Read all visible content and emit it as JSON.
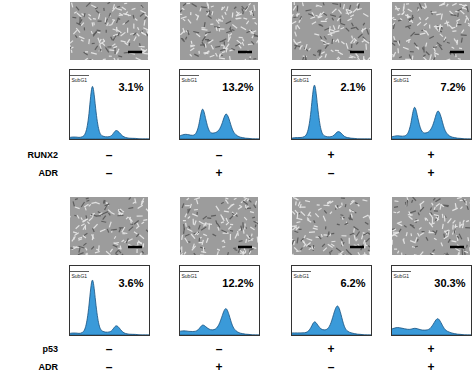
{
  "chart_data": [
    {
      "type": "area",
      "x": [
        0,
        1,
        2,
        3,
        4,
        5,
        6,
        7,
        8,
        9,
        10,
        11,
        12,
        13,
        14,
        15,
        16,
        17,
        18,
        19,
        20,
        21,
        22,
        23,
        24
      ],
      "values": [
        2,
        3,
        3,
        2,
        3,
        6,
        30,
        95,
        40,
        8,
        4,
        3,
        3,
        5,
        14,
        10,
        4,
        2,
        1,
        1,
        1,
        0,
        0,
        0,
        0
      ],
      "annotation": "3.1%",
      "color": "#3a9ad9",
      "xlim": [
        0,
        24
      ],
      "ylim": [
        0,
        100
      ],
      "tick_labels": false
    },
    {
      "type": "area",
      "x": [
        0,
        1,
        2,
        3,
        4,
        5,
        6,
        7,
        8,
        9,
        10,
        11,
        12,
        13,
        14,
        15,
        16,
        17,
        18,
        19,
        20,
        21,
        22,
        23,
        24
      ],
      "values": [
        4,
        6,
        7,
        6,
        5,
        6,
        18,
        52,
        28,
        10,
        8,
        9,
        12,
        22,
        40,
        30,
        12,
        6,
        3,
        2,
        1,
        1,
        0,
        0,
        0
      ],
      "annotation": "13.2%",
      "color": "#3a9ad9",
      "xlim": [
        0,
        24
      ],
      "ylim": [
        0,
        100
      ],
      "tick_labels": false
    },
    {
      "type": "area",
      "x": [
        0,
        1,
        2,
        3,
        4,
        5,
        6,
        7,
        8,
        9,
        10,
        11,
        12,
        13,
        14,
        15,
        16,
        17,
        18,
        19,
        20,
        21,
        22,
        23,
        24
      ],
      "values": [
        1,
        2,
        2,
        2,
        3,
        7,
        35,
        96,
        42,
        9,
        4,
        3,
        3,
        5,
        12,
        9,
        3,
        2,
        1,
        1,
        0,
        0,
        0,
        0,
        0
      ],
      "annotation": "2.1%",
      "color": "#3a9ad9",
      "xlim": [
        0,
        24
      ],
      "ylim": [
        0,
        100
      ],
      "tick_labels": false
    },
    {
      "type": "area",
      "x": [
        0,
        1,
        2,
        3,
        4,
        5,
        6,
        7,
        8,
        9,
        10,
        11,
        12,
        13,
        14,
        15,
        16,
        17,
        18,
        19,
        20,
        21,
        22,
        23,
        24
      ],
      "values": [
        3,
        4,
        5,
        4,
        4,
        6,
        20,
        55,
        30,
        11,
        8,
        9,
        13,
        25,
        45,
        33,
        13,
        6,
        3,
        2,
        1,
        1,
        0,
        0,
        0
      ],
      "annotation": "7.2%",
      "color": "#3a9ad9",
      "xlim": [
        0,
        24
      ],
      "ylim": [
        0,
        100
      ],
      "tick_labels": false
    },
    {
      "type": "area",
      "x": [
        0,
        1,
        2,
        3,
        4,
        5,
        6,
        7,
        8,
        9,
        10,
        11,
        12,
        13,
        14,
        15,
        16,
        17,
        18,
        19,
        20,
        21,
        22,
        23,
        24
      ],
      "values": [
        2,
        3,
        3,
        2,
        3,
        8,
        38,
        97,
        44,
        10,
        5,
        4,
        4,
        6,
        15,
        11,
        4,
        2,
        1,
        1,
        1,
        0,
        0,
        0,
        0
      ],
      "annotation": "3.6%",
      "color": "#3a9ad9",
      "xlim": [
        0,
        24
      ],
      "ylim": [
        0,
        100
      ],
      "tick_labels": false
    },
    {
      "type": "area",
      "x": [
        0,
        1,
        2,
        3,
        4,
        5,
        6,
        7,
        8,
        9,
        10,
        11,
        12,
        13,
        14,
        15,
        16,
        17,
        18,
        19,
        20,
        21,
        22,
        23,
        24
      ],
      "values": [
        5,
        6,
        6,
        5,
        5,
        5,
        8,
        16,
        12,
        8,
        7,
        8,
        14,
        28,
        42,
        30,
        12,
        6,
        3,
        2,
        1,
        1,
        0,
        0,
        0
      ],
      "annotation": "12.2%",
      "color": "#3a9ad9",
      "xlim": [
        0,
        24
      ],
      "ylim": [
        0,
        100
      ],
      "tick_labels": false
    },
    {
      "type": "area",
      "x": [
        0,
        1,
        2,
        3,
        4,
        5,
        6,
        7,
        8,
        9,
        10,
        11,
        12,
        13,
        14,
        15,
        16,
        17,
        18,
        19,
        20,
        21,
        22,
        23,
        24
      ],
      "values": [
        3,
        3,
        3,
        3,
        3,
        4,
        10,
        22,
        14,
        8,
        7,
        8,
        16,
        34,
        46,
        30,
        10,
        5,
        3,
        2,
        1,
        1,
        0,
        0,
        0
      ],
      "annotation": "6.2%",
      "color": "#3a9ad9",
      "xlim": [
        0,
        24
      ],
      "ylim": [
        0,
        100
      ],
      "tick_labels": false
    },
    {
      "type": "area",
      "x": [
        0,
        1,
        2,
        3,
        4,
        5,
        6,
        7,
        8,
        9,
        10,
        11,
        12,
        13,
        14,
        15,
        16,
        17,
        18,
        19,
        20,
        21,
        22,
        23,
        24
      ],
      "values": [
        8,
        10,
        11,
        10,
        9,
        8,
        8,
        10,
        9,
        7,
        7,
        7,
        10,
        18,
        26,
        18,
        8,
        5,
        3,
        2,
        1,
        1,
        0,
        0,
        0
      ],
      "annotation": "30.3%",
      "color": "#3a9ad9",
      "xlim": [
        0,
        24
      ],
      "ylim": [
        0,
        100
      ],
      "tick_labels": false
    }
  ],
  "figure": {
    "gate_label": "SubG1",
    "gate": [
      0,
      6
    ],
    "groups": [
      {
        "factor": "RUNX2",
        "factor_signs": [
          "–",
          "–",
          "+",
          "+"
        ],
        "treatment": "ADR",
        "treatment_signs": [
          "–",
          "+",
          "–",
          "+"
        ]
      },
      {
        "factor": "p53",
        "factor_signs": [
          "–",
          "–",
          "+",
          "+"
        ],
        "treatment": "ADR",
        "treatment_signs": [
          "–",
          "+",
          "–",
          "+"
        ]
      }
    ]
  }
}
